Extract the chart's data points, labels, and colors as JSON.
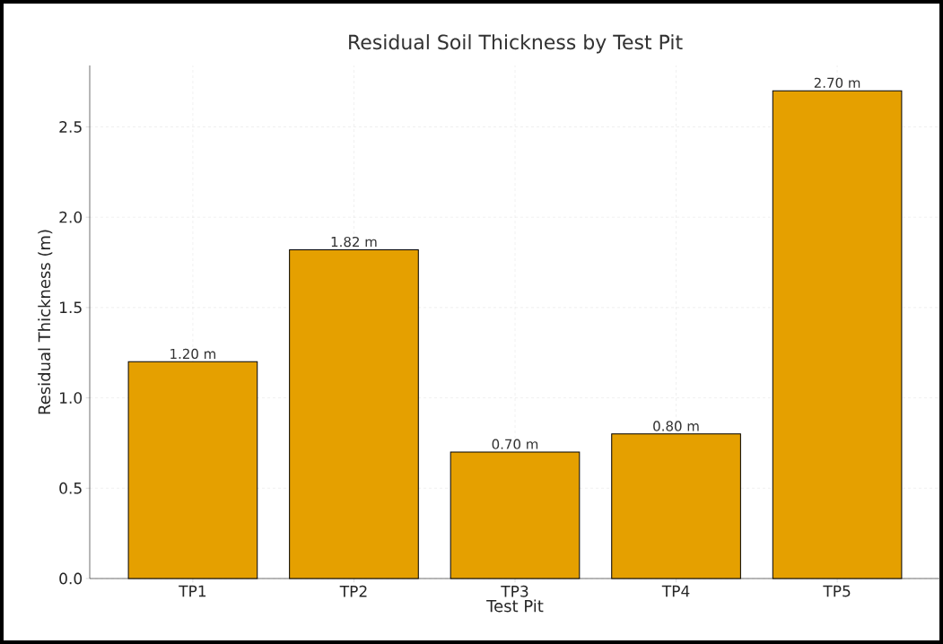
{
  "chart_data": {
    "type": "bar",
    "title": "Residual Soil Thickness by Test Pit",
    "xlabel": "Test Pit",
    "ylabel": "Residual Thickness (m)",
    "categories": [
      "TP1",
      "TP2",
      "TP3",
      "TP4",
      "TP5"
    ],
    "values": [
      1.2,
      1.82,
      0.7,
      0.8,
      2.7
    ],
    "value_labels": [
      "1.20 m",
      "1.82 m",
      "0.70 m",
      "0.80 m",
      "2.70 m"
    ],
    "color": "#e5a000",
    "ylim": [
      0,
      2.84
    ],
    "yticks": [
      {
        "value": 0,
        "label": "0.0"
      },
      {
        "value": 0.5,
        "label": "0.5"
      },
      {
        "value": 1.0,
        "label": "1.0"
      },
      {
        "value": 1.5,
        "label": "1.5"
      },
      {
        "value": 2.0,
        "label": "2.0"
      },
      {
        "value": 2.5,
        "label": "2.5"
      }
    ],
    "grid": true
  }
}
